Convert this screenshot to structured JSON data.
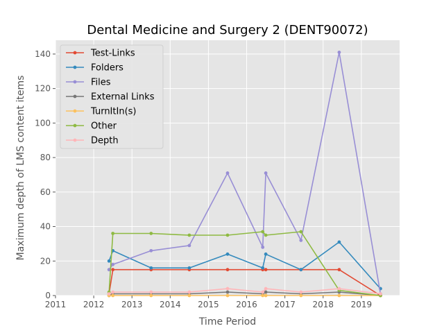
{
  "chart_data": {
    "type": "line",
    "title": "Dental Medicine and Surgery 2 (DENT90072)",
    "xlabel": "Time Period",
    "ylabel": "Maximum depth of LMS content items",
    "xlim": [
      2011,
      2020
    ],
    "ylim": [
      0,
      148
    ],
    "xticks": [
      "2011",
      "2012",
      "2013",
      "2014",
      "2015",
      "2016",
      "2017",
      "2018",
      "2019"
    ],
    "yticks": [
      "0",
      "20",
      "40",
      "60",
      "80",
      "100",
      "120",
      "140"
    ],
    "grid": true,
    "legend_position": "top-left",
    "background": "#e5e5e5",
    "x": [
      2012.4,
      2012.5,
      2013.5,
      2014.5,
      2015.5,
      2016.42,
      2016.5,
      2017.42,
      2018.42,
      2019.5
    ],
    "series": [
      {
        "name": "Test-Links",
        "color": "#e24a33",
        "values": [
          1,
          15,
          15,
          15,
          15,
          15,
          15,
          15,
          15,
          0
        ]
      },
      {
        "name": "Folders",
        "color": "#348abd",
        "values": [
          20,
          26,
          16,
          16,
          24,
          16,
          24,
          15,
          31,
          4
        ]
      },
      {
        "name": "Files",
        "color": "#988ed5",
        "values": [
          15,
          18,
          26,
          29,
          71,
          28,
          71,
          32,
          141,
          1
        ]
      },
      {
        "name": "External Links",
        "color": "#777777",
        "values": [
          0,
          1,
          1,
          1,
          2,
          1,
          2,
          1,
          2,
          0
        ]
      },
      {
        "name": "TurnItIn(s)",
        "color": "#fbc15e",
        "values": [
          0,
          0,
          0,
          0,
          0,
          0,
          0,
          0,
          0,
          0
        ]
      },
      {
        "name": "Other",
        "color": "#8eba42",
        "values": [
          2,
          36,
          36,
          35,
          35,
          37,
          35,
          37,
          3,
          0
        ]
      },
      {
        "name": "Depth",
        "color": "#ffb5b8",
        "values": [
          1,
          2,
          2,
          2,
          4,
          2,
          4,
          2,
          4,
          1
        ]
      }
    ]
  }
}
